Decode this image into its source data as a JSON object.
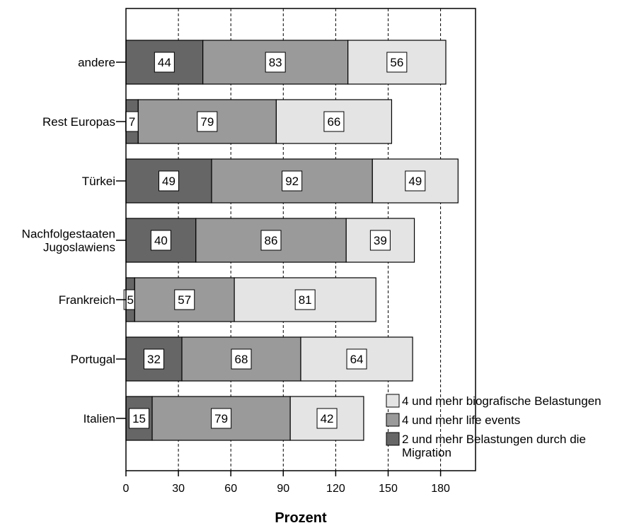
{
  "chart_data": {
    "type": "bar",
    "orientation": "horizontal",
    "stacked": true,
    "categories": [
      "andere",
      "Rest Europas",
      "Türkei",
      "Nachfolgestaaten Jugoslawiens",
      "Frankreich",
      "Portugal",
      "Italien"
    ],
    "category_lines": [
      [
        "andere"
      ],
      [
        "Rest Europas"
      ],
      [
        "Türkei"
      ],
      [
        "Nachfolgestaaten",
        "Jugoslawiens"
      ],
      [
        "Frankreich"
      ],
      [
        "Portugal"
      ],
      [
        "Italien"
      ]
    ],
    "series": [
      {
        "name": "2 und mehr Belastungen durch die Migration",
        "legend_lines": [
          "2 und mehr Belastungen durch die",
          "Migration"
        ],
        "color": "#666666",
        "values": [
          44,
          7,
          49,
          40,
          5,
          32,
          15
        ]
      },
      {
        "name": "4 und mehr life events",
        "legend_lines": [
          "4 und mehr life events"
        ],
        "color": "#9a9a9a",
        "values": [
          83,
          79,
          92,
          86,
          57,
          68,
          79
        ]
      },
      {
        "name": "4 und mehr biografische Belastungen",
        "legend_lines": [
          "4 und mehr biografische Belastungen"
        ],
        "color": "#e4e4e4",
        "values": [
          56,
          66,
          49,
          39,
          81,
          64,
          42
        ]
      }
    ],
    "legend_order": [
      2,
      1,
      0
    ],
    "xlim": [
      0,
      200
    ],
    "xticks": [
      0,
      30,
      60,
      90,
      120,
      150,
      180
    ],
    "xlabel": "Prozent",
    "ylabel": "",
    "title": "",
    "grid": "vertical dashed",
    "legend_position": "bottom-right"
  }
}
